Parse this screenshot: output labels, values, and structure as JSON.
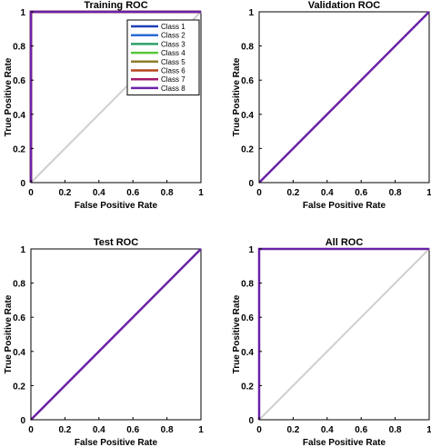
{
  "chart_data": [
    {
      "type": "line",
      "title": "Training ROC",
      "xlabel": "False Positive Rate",
      "ylabel": "True Positive Rate",
      "xlim": [
        0,
        1
      ],
      "ylim": [
        0,
        1
      ],
      "xticks": [
        0,
        0.2,
        0.4,
        0.6,
        0.8,
        1
      ],
      "yticks": [
        0,
        0.2,
        0.4,
        0.6,
        0.8,
        1
      ],
      "grid": false,
      "legend": "top-right",
      "diagonal_reference": true,
      "series": [
        {
          "name": "Class 1",
          "color": "#1f3fb8",
          "x": [
            0,
            0,
            1
          ],
          "y": [
            0,
            1,
            1
          ]
        },
        {
          "name": "Class 2",
          "color": "#2a6bd6",
          "x": [
            0,
            0,
            1
          ],
          "y": [
            0,
            1,
            1
          ]
        },
        {
          "name": "Class 3",
          "color": "#2fa06a",
          "x": [
            0,
            0,
            1
          ],
          "y": [
            0,
            1,
            1
          ]
        },
        {
          "name": "Class 4",
          "color": "#57c83a",
          "x": [
            0,
            0,
            1
          ],
          "y": [
            0,
            1,
            1
          ]
        },
        {
          "name": "Class 5",
          "color": "#8f7d2a",
          "x": [
            0,
            0,
            1
          ],
          "y": [
            0,
            1,
            1
          ]
        },
        {
          "name": "Class 6",
          "color": "#b5461f",
          "x": [
            0,
            0,
            1
          ],
          "y": [
            0,
            1,
            1
          ]
        },
        {
          "name": "Class 7",
          "color": "#a3186a",
          "x": [
            0,
            0,
            1
          ],
          "y": [
            0,
            1,
            1
          ]
        },
        {
          "name": "Class 8",
          "color": "#6a22a6",
          "x": [
            0,
            0,
            1
          ],
          "y": [
            0,
            1,
            1
          ]
        }
      ]
    },
    {
      "type": "line",
      "title": "Validation ROC",
      "xlabel": "False Positive Rate",
      "ylabel": "True Positive Rate",
      "xlim": [
        0,
        1
      ],
      "ylim": [
        0,
        1
      ],
      "xticks": [
        0,
        0.2,
        0.4,
        0.6,
        0.8,
        1
      ],
      "yticks": [
        0,
        0.2,
        0.4,
        0.6,
        0.8,
        1
      ],
      "grid": false,
      "diagonal_reference": true,
      "series": [
        {
          "color": "#6a22a6",
          "x": [
            0,
            1
          ],
          "y": [
            0,
            1
          ]
        }
      ]
    },
    {
      "type": "line",
      "title": "Test ROC",
      "xlabel": "False Positive Rate",
      "ylabel": "True Positive Rate",
      "xlim": [
        0,
        1
      ],
      "ylim": [
        0,
        1
      ],
      "xticks": [
        0,
        0.2,
        0.4,
        0.6,
        0.8,
        1
      ],
      "yticks": [
        0,
        0.2,
        0.4,
        0.6,
        0.8,
        1
      ],
      "grid": false,
      "diagonal_reference": true,
      "series": [
        {
          "color": "#6a22a6",
          "x": [
            0,
            1
          ],
          "y": [
            0,
            1
          ]
        }
      ]
    },
    {
      "type": "line",
      "title": "All ROC",
      "xlabel": "False Positive Rate",
      "ylabel": "True Positive Rate",
      "xlim": [
        0,
        1
      ],
      "ylim": [
        0,
        1
      ],
      "xticks": [
        0,
        0.2,
        0.4,
        0.6,
        0.8,
        1
      ],
      "yticks": [
        0,
        0.2,
        0.4,
        0.6,
        0.8,
        1
      ],
      "grid": false,
      "diagonal_reference": true,
      "series": [
        {
          "color": "#6a22a6",
          "x": [
            0,
            0,
            1
          ],
          "y": [
            0,
            1,
            1
          ]
        }
      ]
    }
  ]
}
